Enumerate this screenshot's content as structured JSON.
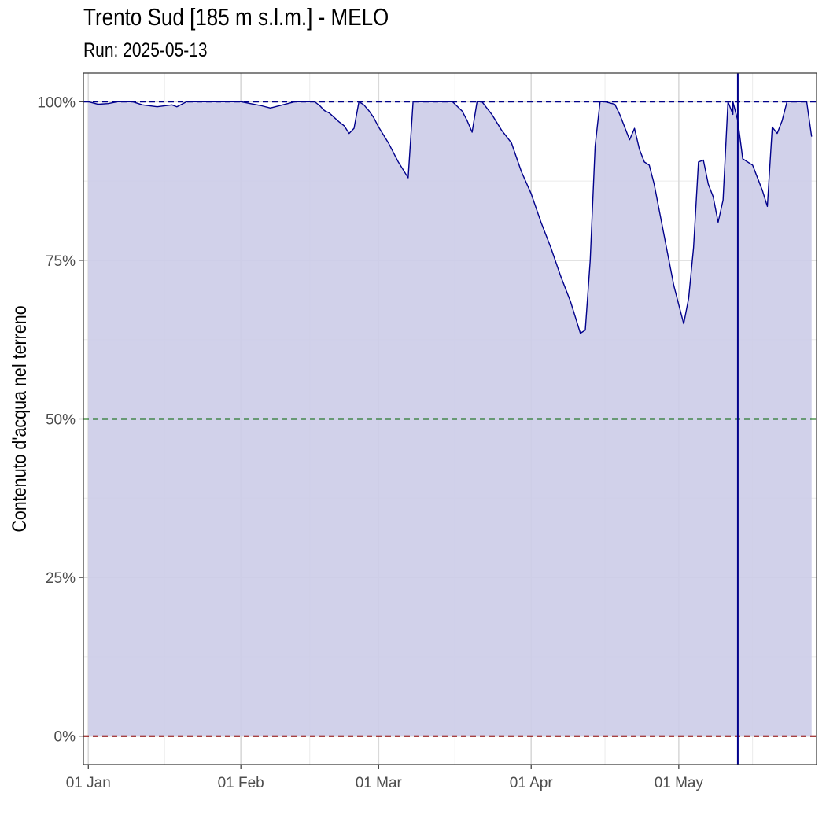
{
  "title": "Trento Sud [185 m s.l.m.] - MELO",
  "subtitle": "Run: 2025-05-13",
  "chart_data": {
    "type": "area",
    "ylabel": "Contenuto d'acqua nel terreno",
    "xlabel": "",
    "ylim": [
      -4.5,
      104.5
    ],
    "xlim": [
      "2024-12-31",
      "2025-05-29"
    ],
    "y_ticks": [
      0,
      25,
      50,
      75,
      100
    ],
    "y_tick_labels": [
      "0%",
      "25%",
      "50%",
      "75%",
      "100%"
    ],
    "x_ticks": [
      "2025-01-01",
      "2025-02-01",
      "2025-03-01",
      "2025-04-01",
      "2025-05-01"
    ],
    "x_tick_labels": [
      "01 Jan",
      "01 Feb",
      "01 Mar",
      "01 Apr",
      "01 May"
    ],
    "grid": true,
    "colors": {
      "area_fill": "#cccce8",
      "line": "#00008b",
      "ref_100": "#00008b",
      "ref_50": "#006400",
      "ref_0": "#8b0000",
      "run_marker": "#00008b"
    },
    "reference_lines": [
      {
        "y": 100,
        "style": "dashed",
        "color": "#00008b"
      },
      {
        "y": 50,
        "style": "dashed",
        "color": "#006400"
      },
      {
        "y": 0,
        "style": "dashed",
        "color": "#8b0000"
      }
    ],
    "run_date": "2025-05-13",
    "series": [
      {
        "x": [
          "2025-01-01",
          "2025-01-03",
          "2025-01-05",
          "2025-01-07",
          "2025-01-10",
          "2025-01-12",
          "2025-01-15",
          "2025-01-18",
          "2025-01-19",
          "2025-01-21",
          "2025-01-23",
          "2025-01-25",
          "2025-01-28",
          "2025-02-01",
          "2025-02-05",
          "2025-02-07",
          "2025-02-12",
          "2025-02-15",
          "2025-02-16",
          "2025-02-17",
          "2025-02-18",
          "2025-02-19",
          "2025-02-20",
          "2025-02-21",
          "2025-02-22",
          "2025-02-23",
          "2025-02-24",
          "2025-02-25",
          "2025-02-26",
          "2025-02-27",
          "2025-02-28",
          "2025-03-01",
          "2025-03-03",
          "2025-03-05",
          "2025-03-07",
          "2025-03-08",
          "2025-03-09",
          "2025-03-14",
          "2025-03-15",
          "2025-03-16",
          "2025-03-18",
          "2025-03-19",
          "2025-03-20",
          "2025-03-21",
          "2025-03-22",
          "2025-03-24",
          "2025-03-26",
          "2025-03-28",
          "2025-03-30",
          "2025-04-01",
          "2025-04-03",
          "2025-04-05",
          "2025-04-07",
          "2025-04-09",
          "2025-04-11",
          "2025-04-12",
          "2025-04-13",
          "2025-04-14",
          "2025-04-15",
          "2025-04-16",
          "2025-04-18",
          "2025-04-19",
          "2025-04-21",
          "2025-04-22",
          "2025-04-23",
          "2025-04-24",
          "2025-04-25",
          "2025-04-26",
          "2025-04-27",
          "2025-04-28",
          "2025-04-30",
          "2025-05-02",
          "2025-05-03",
          "2025-05-04",
          "2025-05-05",
          "2025-05-06",
          "2025-05-07",
          "2025-05-08",
          "2025-05-09",
          "2025-05-10",
          "2025-05-11",
          "2025-05-12",
          "2025-05-12",
          "2025-05-13",
          "2025-05-14",
          "2025-05-16",
          "2025-05-18",
          "2025-05-19",
          "2025-05-20",
          "2025-05-21",
          "2025-05-22",
          "2025-05-23",
          "2025-05-24",
          "2025-05-25",
          "2025-05-27",
          "2025-05-28"
        ],
        "y": [
          100,
          99.6,
          99.7,
          100,
          100,
          99.5,
          99.2,
          99.5,
          99.2,
          100,
          100,
          100,
          100,
          100,
          99.4,
          99.0,
          100,
          100,
          100,
          99.4,
          98.6,
          98.2,
          97.5,
          96.8,
          96.2,
          95.0,
          95.8,
          100,
          99.5,
          98.6,
          97.5,
          96.0,
          93.5,
          90.5,
          88.0,
          100,
          100,
          100,
          100,
          100,
          98.5,
          97.0,
          95.2,
          100,
          100,
          98.0,
          95.5,
          93.5,
          89.0,
          85.5,
          81.0,
          77.0,
          72.5,
          68.5,
          63.5,
          64.0,
          75.0,
          93.0,
          100,
          100,
          99.6,
          98.0,
          94.0,
          95.8,
          92.5,
          90.5,
          90.0,
          87.0,
          83.0,
          79.0,
          71.0,
          65.0,
          69.0,
          77.0,
          90.5,
          90.8,
          87.0,
          85.0,
          81.0,
          84.5,
          100,
          98.0,
          100,
          97.0,
          91.0,
          90.0,
          86.0,
          83.5,
          96.0,
          95.0,
          97.0,
          100,
          100,
          100,
          100,
          94.5
        ]
      }
    ]
  }
}
